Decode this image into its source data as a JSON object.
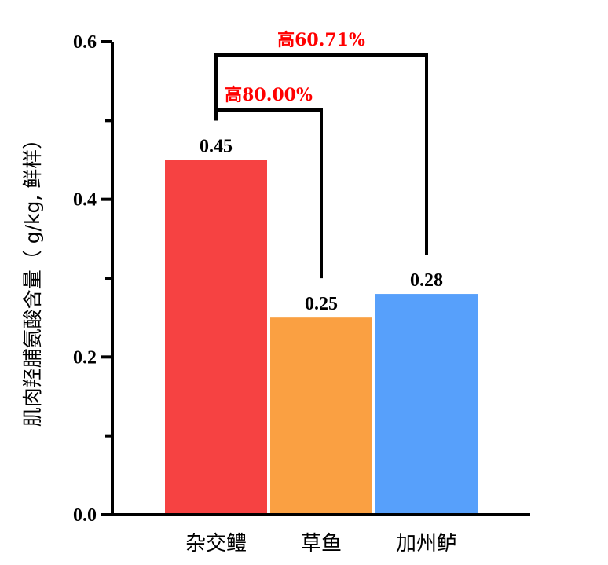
{
  "chart_data": {
    "type": "bar",
    "categories": [
      "杂交鳢",
      "草鱼",
      "加州鲈"
    ],
    "values": [
      0.45,
      0.25,
      0.28
    ],
    "value_labels": [
      "0.45",
      "0.25",
      "0.28"
    ],
    "colors": [
      "#F64242",
      "#FAA042",
      "#57A0FB"
    ],
    "ylabel": "肌肉羟脯氨酸含量（ g/kg, 鲜样）",
    "ylim": [
      0,
      0.6
    ],
    "yticks": [
      0.0,
      0.2,
      0.4,
      0.6
    ],
    "ytick_labels": [
      "0.0",
      "0.2",
      "0.4",
      "0.6"
    ],
    "grid": false,
    "annotations": [
      {
        "from": 0,
        "to": 1,
        "text": "高80.00%",
        "color": "#FF0000"
      },
      {
        "from": 0,
        "to": 2,
        "text": "高60.71%",
        "color": "#FF0000"
      }
    ]
  }
}
